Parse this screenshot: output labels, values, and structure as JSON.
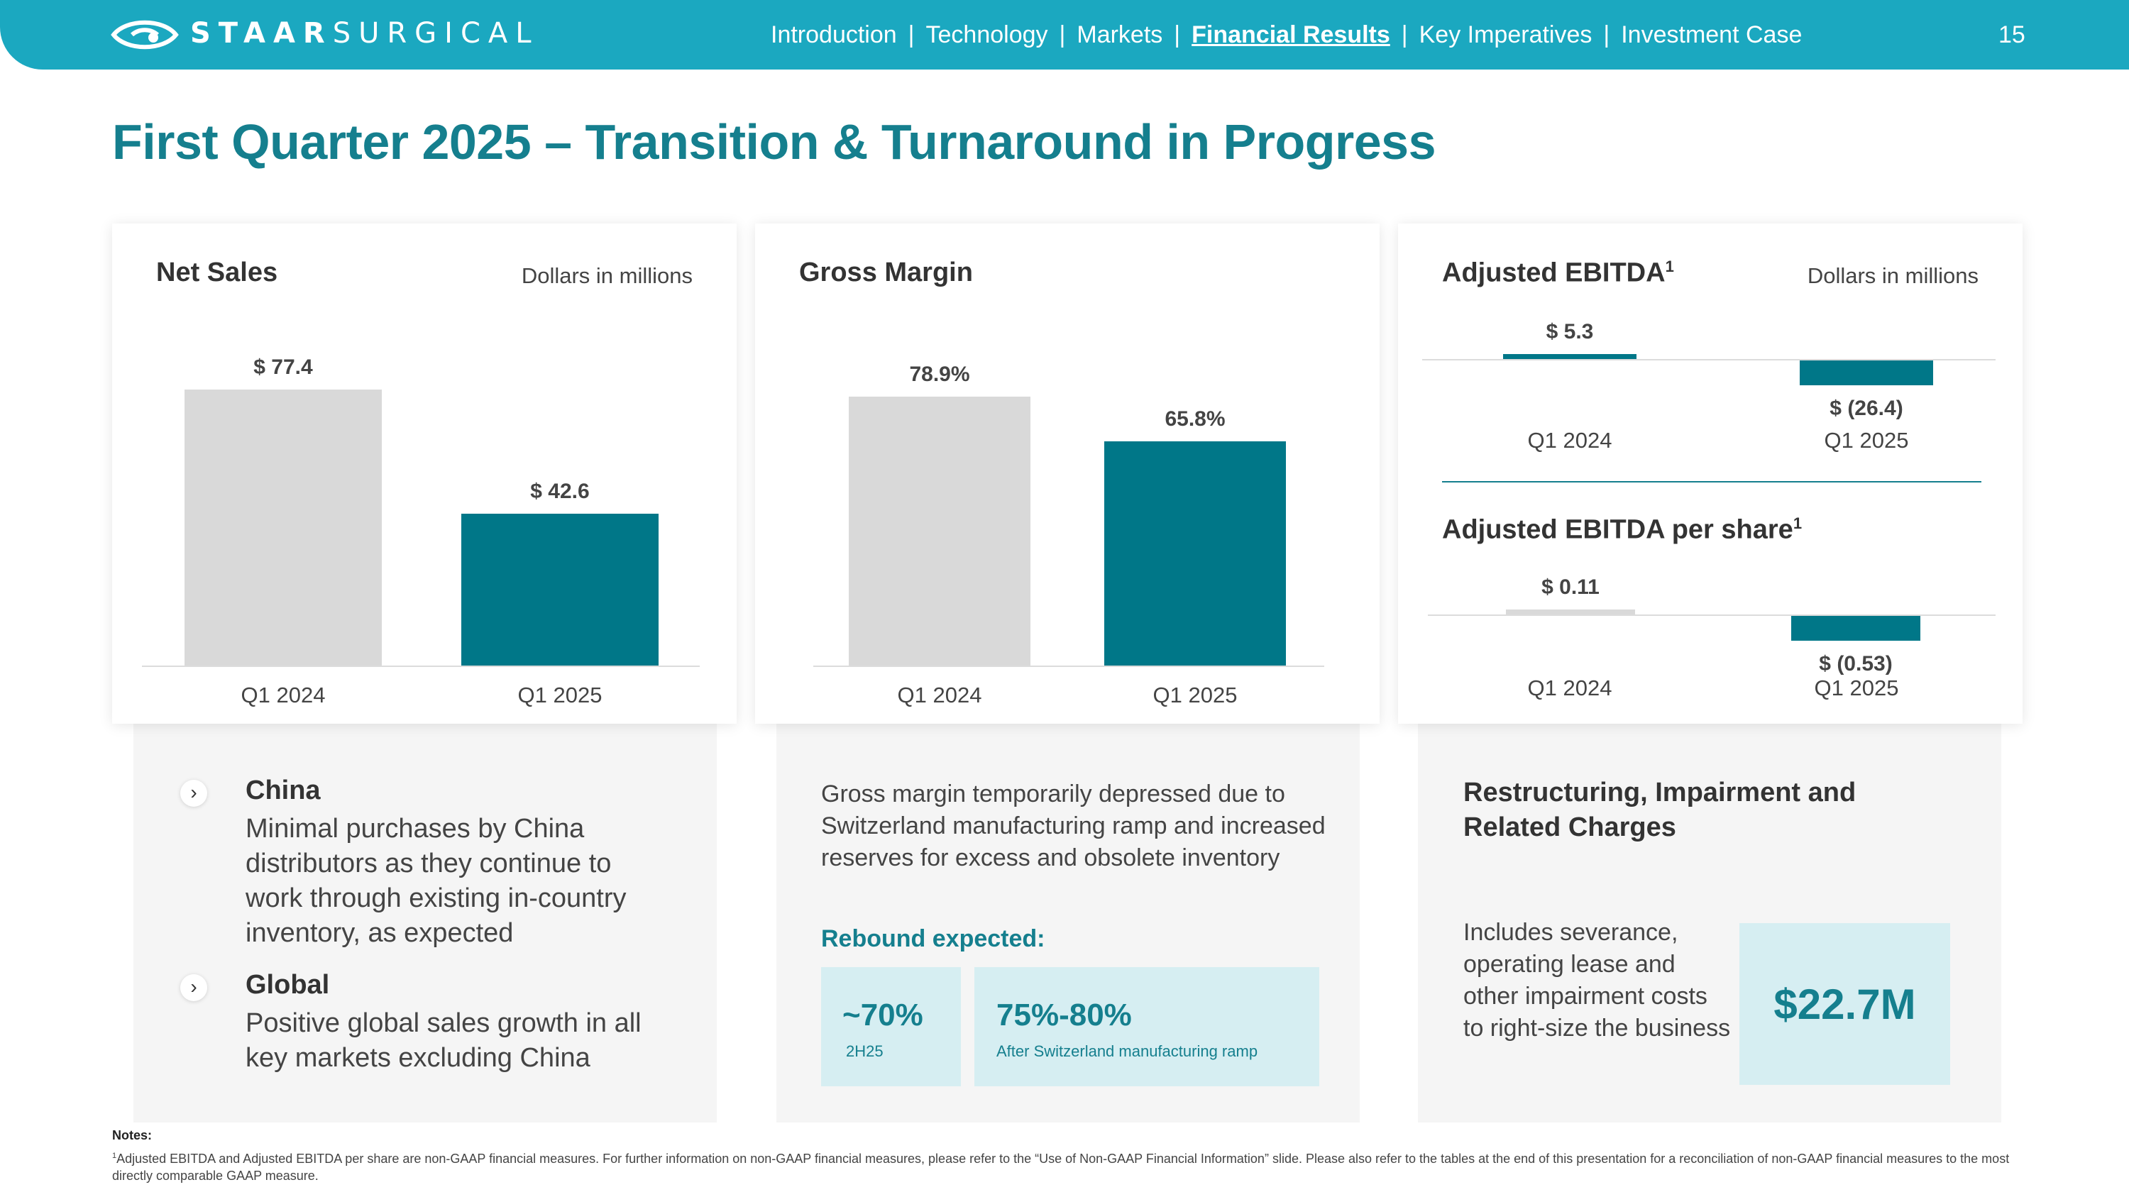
{
  "header": {
    "logo_bold": "STAAR",
    "logo_light": "SURGICAL",
    "nav": [
      {
        "label": "Introduction",
        "active": false
      },
      {
        "label": "Technology",
        "active": false
      },
      {
        "label": "Markets",
        "active": false
      },
      {
        "label": "Financial Results",
        "active": true
      },
      {
        "label": "Key Imperatives",
        "active": false
      },
      {
        "label": "Investment Case",
        "active": false
      }
    ],
    "separator": "|",
    "page_number": "15"
  },
  "title": "First Quarter 2025 – Transition & Turnaround in Progress",
  "net_sales": {
    "title": "Net Sales",
    "note": "Dollars in millions",
    "value_labels": [
      "$ 77.4",
      "$ 42.6"
    ],
    "categories": [
      "Q1 2024",
      "Q1 2025"
    ]
  },
  "gross_margin": {
    "title": "Gross Margin",
    "value_labels": [
      "78.9%",
      "65.8%"
    ],
    "categories": [
      "Q1 2024",
      "Q1 2025"
    ]
  },
  "ebitda": {
    "title": "Adjusted EBITDA",
    "title_sup": "1",
    "note": "Dollars in millions",
    "value_labels": [
      "$ 5.3",
      "$ (26.4)"
    ],
    "categories": [
      "Q1 2024",
      "Q1 2025"
    ]
  },
  "ebitda_per_share": {
    "title": "Adjusted EBITDA per share",
    "title_sup": "1",
    "value_labels": [
      "$ 0.11",
      "$ (0.53)"
    ],
    "categories": [
      "Q1 2024",
      "Q1 2025"
    ]
  },
  "chart_data": [
    {
      "type": "bar",
      "title": "Net Sales",
      "ylabel": "Dollars in millions",
      "categories": [
        "Q1 2024",
        "Q1 2025"
      ],
      "values": [
        77.4,
        42.6
      ],
      "colors": [
        "#d9d9d9",
        "#007788"
      ]
    },
    {
      "type": "bar",
      "title": "Gross Margin",
      "categories": [
        "Q1 2024",
        "Q1 2025"
      ],
      "values": [
        78.9,
        65.8
      ],
      "colors": [
        "#d9d9d9",
        "#007788"
      ]
    },
    {
      "type": "bar",
      "title": "Adjusted EBITDA",
      "ylabel": "Dollars in millions",
      "categories": [
        "Q1 2024",
        "Q1 2025"
      ],
      "values": [
        5.3,
        -26.4
      ],
      "colors": [
        "#007788",
        "#007788"
      ]
    },
    {
      "type": "bar",
      "title": "Adjusted EBITDA per share",
      "categories": [
        "Q1 2024",
        "Q1 2025"
      ],
      "values": [
        0.11,
        -0.53
      ],
      "colors": [
        "#d9d9d9",
        "#007788"
      ]
    }
  ],
  "panel_china": {
    "china_heading": "China",
    "china_text": "Minimal purchases by China distributors as they continue to work through existing in-country inventory, as expected",
    "global_heading": "Global",
    "global_text": "Positive global sales growth in all key markets excluding China",
    "arrow": "›"
  },
  "panel_margin": {
    "text": "Gross margin temporarily depressed due to Switzerland manufacturing ramp and increased reserves for excess and obsolete inventory",
    "rebound": "Rebound expected:",
    "stat1_value": "~70%",
    "stat1_label": "2H25",
    "stat2_value": "75%-80%",
    "stat2_label": "After Switzerland manufacturing ramp"
  },
  "panel_restructuring": {
    "heading": "Restructuring, Impairment and Related Charges",
    "text": "Includes severance, operating lease and other impairment costs to right-size the business",
    "amount": "$22.7M"
  },
  "notes": {
    "heading": "Notes:",
    "sup": "1",
    "text": "Adjusted EBITDA and Adjusted EBITDA per share are non-GAAP financial measures. For further information on non-GAAP financial measures, please refer to the “Use of Non-GAAP Financial Information” slide. Please also refer to the tables at the end of this presentation for a reconciliation of non-GAAP financial measures to the most directly comparable GAAP measure."
  },
  "colors": {
    "brand": "#1ba8c0",
    "teal": "#007788",
    "title": "#157f8e",
    "gray_bar": "#d9d9d9",
    "stat_box": "#d6eef2"
  }
}
